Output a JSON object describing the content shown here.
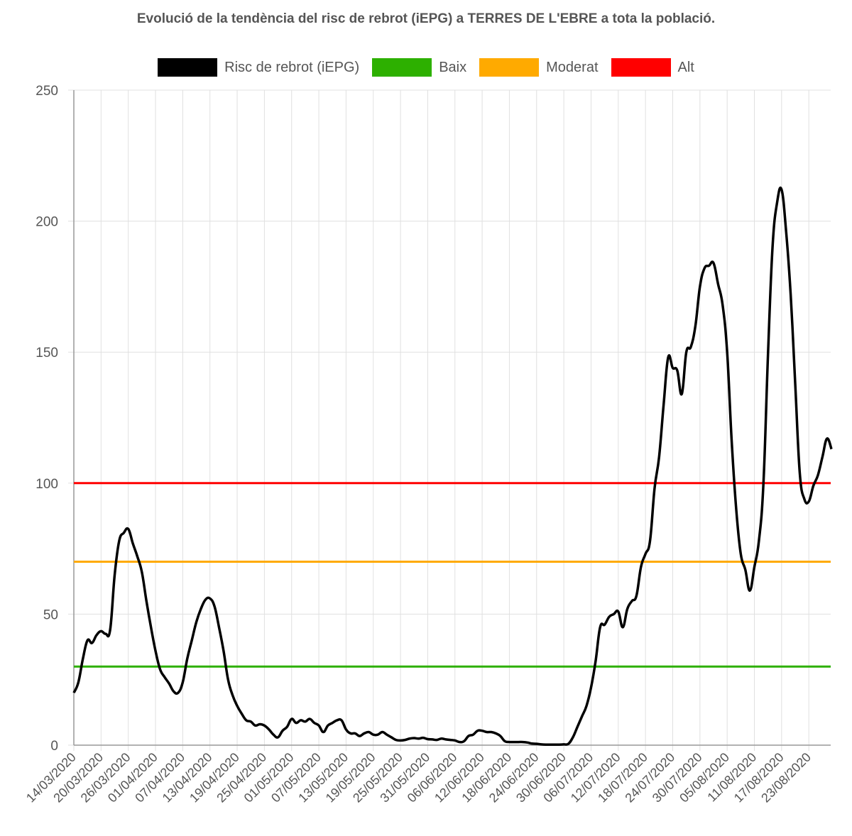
{
  "chart_data": {
    "type": "line",
    "title": "Evolució de la tendència del risc de rebrot (iEPG) a TERRES DE L'EBRE a tota la població.",
    "legend_position": "top",
    "grid": true,
    "ylim": [
      0,
      250
    ],
    "yticks": [
      0,
      50,
      100,
      150,
      200,
      250
    ],
    "x_start_date": "14/03/2020",
    "x_step_days": 1,
    "xtick_every_days": 6,
    "xtick_labels": [
      "14/03/2020",
      "20/03/2020",
      "26/03/2020",
      "01/04/2020",
      "07/04/2020",
      "13/04/2020",
      "19/04/2020",
      "25/04/2020",
      "01/05/2020",
      "07/05/2020",
      "13/05/2020",
      "19/05/2020",
      "25/05/2020",
      "31/05/2020",
      "06/06/2020",
      "12/06/2020",
      "18/06/2020",
      "24/06/2020",
      "30/06/2020",
      "06/07/2020",
      "12/07/2020",
      "18/07/2020",
      "24/07/2020",
      "30/07/2020",
      "05/08/2020",
      "11/08/2020",
      "17/08/2020",
      "23/08/2020"
    ],
    "series": [
      {
        "name": "Risc de rebrot (iEPG)",
        "color": "#000000",
        "type": "line",
        "values": [
          20,
          24,
          33,
          40,
          39,
          42,
          43.5,
          42.5,
          44,
          65,
          78,
          81,
          82.5,
          77,
          72,
          66,
          55,
          45,
          36,
          29,
          26,
          23.5,
          20.5,
          20,
          24,
          33,
          40,
          47,
          52,
          55.5,
          56,
          53,
          45,
          36,
          25,
          19,
          15,
          12,
          9.5,
          9,
          7.5,
          8,
          7.5,
          6,
          4,
          3,
          5.5,
          7,
          10,
          8.5,
          9.5,
          9,
          10,
          8.5,
          7.5,
          5,
          7.5,
          8.5,
          9.5,
          9.5,
          6,
          4.5,
          4.5,
          3.5,
          4.5,
          5,
          4,
          4,
          5,
          4,
          3,
          2,
          1.8,
          2,
          2.5,
          2.7,
          2.5,
          2.8,
          2.3,
          2.2,
          2,
          2.5,
          2.2,
          2,
          1.8,
          1.2,
          1.5,
          3.5,
          4,
          5.5,
          5.5,
          5,
          5,
          4.5,
          3.5,
          1.5,
          1.2,
          1.2,
          1.2,
          1.2,
          1,
          0.6,
          0.5,
          0.3,
          0.2,
          0.2,
          0.2,
          0.2,
          0.3,
          0.5,
          3,
          7,
          11,
          15,
          22,
          32,
          45,
          46,
          49,
          50,
          51,
          45,
          52,
          55,
          57,
          68,
          73,
          78,
          98,
          110,
          130,
          148,
          144,
          143,
          134,
          150,
          152,
          160,
          175,
          182,
          183,
          184,
          176,
          168,
          150,
          116,
          90,
          73,
          67,
          59,
          68,
          78,
          100,
          149,
          190,
          207,
          212,
          196,
          172,
          138,
          104,
          94,
          93,
          99,
          103,
          110,
          117,
          113
        ]
      },
      {
        "name": "Baix",
        "color": "#2db000",
        "type": "constant",
        "value": 30
      },
      {
        "name": "Moderat",
        "color": "#ffaa00",
        "type": "constant",
        "value": 70
      },
      {
        "name": "Alt",
        "color": "#ff0000",
        "type": "constant",
        "value": 100
      }
    ]
  }
}
